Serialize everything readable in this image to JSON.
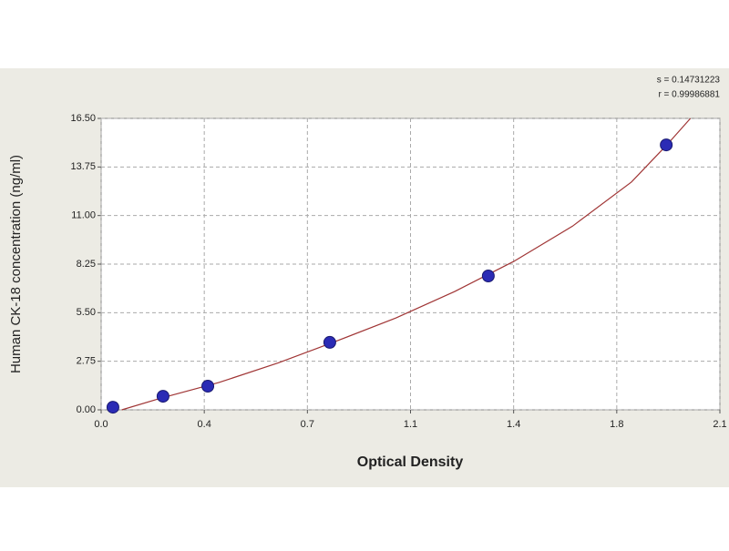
{
  "chart_data": {
    "type": "scatter",
    "stats": [
      "s = 0.14731223",
      "r = 0.99986881"
    ],
    "x_label": "Optical Density",
    "y_label": "Human CK-18 concentration (ng/ml)",
    "xlim": [
      0,
      2.1
    ],
    "xticks": [
      {
        "value": 0,
        "label": "0.0"
      },
      {
        "value": 0.35,
        "label": "0.4"
      },
      0.7,
      {
        "value": 1.05,
        "label": "1.1"
      },
      1.4,
      {
        "value": 1.75,
        "label": "1.8"
      },
      2.1
    ],
    "ylim": [
      0,
      16.5
    ],
    "yticks": [
      {
        "value": 0,
        "label": "0.00"
      },
      2.75,
      {
        "value": 5.5,
        "label": "5.50"
      },
      8.25,
      {
        "value": 11,
        "label": "11.00"
      },
      13.75,
      {
        "value": 16.5,
        "label": "16.50"
      }
    ],
    "grid": true,
    "points": {
      "color": "#2b2bb5",
      "x": [
        0.04,
        0.21,
        0.362,
        0.776,
        1.314,
        1.918
      ],
      "values": [
        0.15,
        0.77,
        1.34,
        3.82,
        7.58,
        15.0
      ]
    },
    "curve": {
      "color": "#a03535",
      "x": [
        0.07,
        0.2,
        0.4,
        0.6,
        0.8,
        1.0,
        1.2,
        1.4,
        1.6,
        1.8,
        1.92,
        2.0
      ],
      "values": [
        0,
        0.65,
        1.55,
        2.65,
        3.9,
        5.2,
        6.7,
        8.4,
        10.4,
        12.9,
        15.0,
        16.5
      ]
    }
  }
}
